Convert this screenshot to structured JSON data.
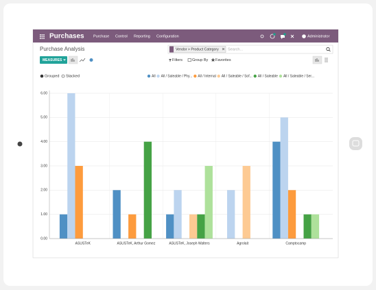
{
  "app": {
    "title": "Purchases",
    "menu": [
      "Purchase",
      "Control",
      "Reporting",
      "Configuration"
    ],
    "user": "Administrator"
  },
  "breadcrumb": "Purchase Analysis",
  "search": {
    "facet": "Vendor > Product Category",
    "placeholder": "Search..."
  },
  "toolbar": {
    "measures": "MEASURES",
    "filters": "Filters",
    "group_by": "Group By",
    "favorites": "Favorites"
  },
  "modes": [
    "Grouped",
    "Stacked"
  ],
  "chart_data": {
    "type": "bar",
    "categories": [
      "ASUSTeK",
      "ASUSTeK, Arthur Gomez",
      "ASUSTeK, Joseph Walters",
      "Agrolait",
      "Camptocamp"
    ],
    "series": [
      {
        "name": "All",
        "color": "#4f90c4",
        "values": [
          1,
          2,
          1,
          0,
          4
        ]
      },
      {
        "name": "All / Saleable / Phy...",
        "color": "#bcd4ef",
        "values": [
          6,
          0,
          2,
          2,
          5
        ]
      },
      {
        "name": "All / Internal",
        "color": "#fd9b3d",
        "values": [
          3,
          1,
          0,
          0,
          2
        ]
      },
      {
        "name": "All / Saleable / Sof...",
        "color": "#fdca93",
        "values": [
          0,
          0,
          1,
          3,
          0
        ]
      },
      {
        "name": "All / Saleable",
        "color": "#45a245",
        "values": [
          0,
          4,
          1,
          0,
          1
        ]
      },
      {
        "name": "All / Saleable / Ser...",
        "color": "#aee19b",
        "values": [
          0,
          0,
          3,
          0,
          1
        ]
      }
    ],
    "ylim": [
      0,
      6
    ],
    "yticks": [
      {
        "value": 0,
        "label": "0.00"
      },
      {
        "value": 1,
        "label": "1.00"
      },
      {
        "value": 2,
        "label": "2.00"
      },
      {
        "value": 3,
        "label": "3.00"
      },
      {
        "value": 4,
        "label": "4.00"
      },
      {
        "value": 5,
        "label": "5.00"
      },
      {
        "value": 6,
        "label": "6.00"
      }
    ],
    "grid": true
  }
}
